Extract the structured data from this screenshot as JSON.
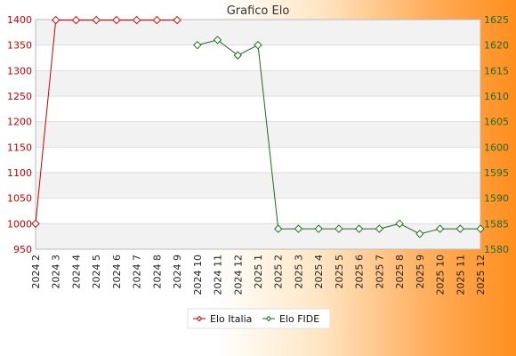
{
  "chart_data": {
    "type": "line",
    "title": "Grafico Elo",
    "categories": [
      "2024 2",
      "2024 3",
      "2024 4",
      "2024 5",
      "2024 6",
      "2024 7",
      "2024 8",
      "2024 9",
      "2024 10",
      "2024 11",
      "2024 12",
      "2025 1",
      "2025 2",
      "2025 3",
      "2025 4",
      "2025 5",
      "2025 6",
      "2025 7",
      "2025 8",
      "2025 9",
      "2025 10",
      "2025 11",
      "2025 12"
    ],
    "y_left": {
      "ylim": [
        950,
        1400
      ],
      "ticks": [
        950,
        1000,
        1050,
        1100,
        1150,
        1200,
        1250,
        1300,
        1350,
        1400
      ],
      "color": "#cc0000"
    },
    "y_right": {
      "ylim": [
        1580,
        1625
      ],
      "ticks": [
        1580,
        1585,
        1590,
        1595,
        1600,
        1605,
        1610,
        1615,
        1620,
        1625
      ],
      "color": "#1f6b1f"
    },
    "series": [
      {
        "name": "Elo Italia",
        "axis": "left",
        "color": "#cc0000",
        "values": [
          1000,
          1399,
          1399,
          1399,
          1399,
          1399,
          1399,
          1399,
          null,
          null,
          null,
          null,
          null,
          null,
          null,
          null,
          null,
          null,
          null,
          null,
          null,
          null,
          null
        ]
      },
      {
        "name": "Elo FIDE",
        "axis": "right",
        "color": "#1f6b1f",
        "values": [
          null,
          null,
          null,
          null,
          null,
          null,
          null,
          null,
          1620,
          1621,
          1618,
          1620,
          1584,
          1584,
          1584,
          1584,
          1584,
          1584,
          1585,
          1583,
          1584,
          1584,
          1584
        ]
      }
    ],
    "grid": true,
    "legend": "bottom"
  }
}
